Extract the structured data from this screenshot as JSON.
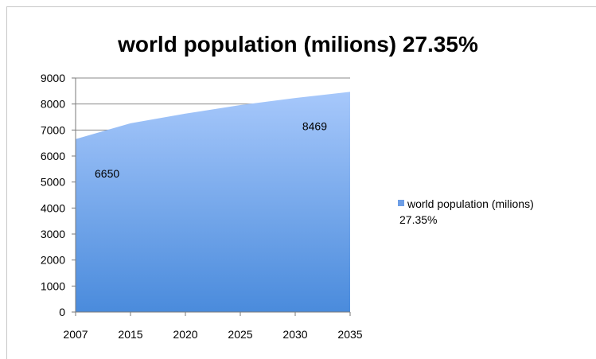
{
  "chart_data": {
    "type": "area",
    "title": "world population (milions) 27.35%",
    "xlabel": "",
    "ylabel": "",
    "categories": [
      "2007",
      "2015",
      "2020",
      "2025",
      "2030",
      "2035"
    ],
    "series": [
      {
        "name": "world population (milions)",
        "values": [
          6650,
          7260,
          7630,
          7960,
          8230,
          8469
        ]
      }
    ],
    "ylim": [
      0,
      9000
    ],
    "yticks": [
      "0",
      "1000",
      "2000",
      "3000",
      "4000",
      "5000",
      "6000",
      "7000",
      "8000",
      "9000"
    ],
    "data_labels": [
      {
        "index": 0,
        "text": "6650"
      },
      {
        "index": 5,
        "text": "8469"
      }
    ],
    "grid": "horizontal",
    "legend": {
      "position": "right",
      "label": "world population (milions)",
      "note": "27.35%"
    },
    "colors": {
      "fill_top": "#a7c8fb",
      "fill_bottom": "#4a8bdc",
      "legend_swatch": "#6e9ee6",
      "grid": "#8a8a8a"
    }
  }
}
